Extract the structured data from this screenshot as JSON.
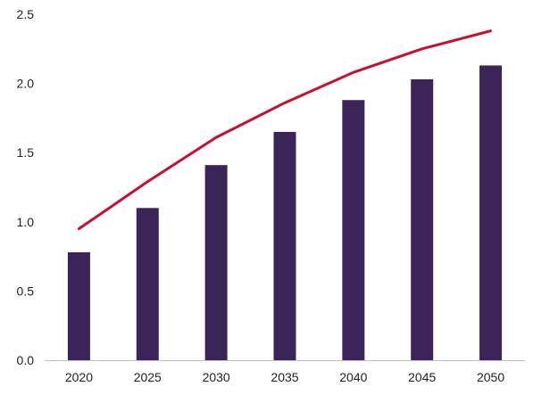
{
  "chart_data": {
    "type": "bar",
    "title": "",
    "xlabel": "",
    "ylabel": "",
    "categories": [
      "2020",
      "2025",
      "2030",
      "2035",
      "2040",
      "2045",
      "2050"
    ],
    "ylim": [
      0,
      2.5
    ],
    "yticks": [
      "0.0",
      "0.5",
      "1.0",
      "1.5",
      "2.0",
      "2.5"
    ],
    "grid": false,
    "legend": "none",
    "series": [
      {
        "type": "bar",
        "color": "#3b2458",
        "values": [
          0.78,
          1.1,
          1.41,
          1.65,
          1.88,
          2.03,
          2.13
        ]
      },
      {
        "type": "line",
        "color": "#c8102e",
        "values": [
          0.95,
          1.29,
          1.61,
          1.86,
          2.08,
          2.25,
          2.38
        ]
      }
    ]
  }
}
